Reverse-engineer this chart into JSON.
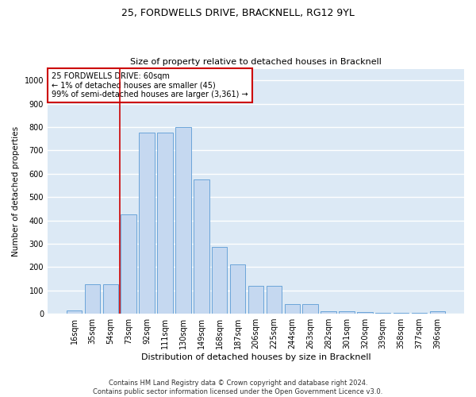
{
  "title": "25, FORDWELLS DRIVE, BRACKNELL, RG12 9YL",
  "subtitle": "Size of property relative to detached houses in Bracknell",
  "xlabel": "Distribution of detached houses by size in Bracknell",
  "ylabel": "Number of detached properties",
  "categories": [
    "16sqm",
    "35sqm",
    "54sqm",
    "73sqm",
    "92sqm",
    "111sqm",
    "130sqm",
    "149sqm",
    "168sqm",
    "187sqm",
    "206sqm",
    "225sqm",
    "244sqm",
    "263sqm",
    "282sqm",
    "301sqm",
    "320sqm",
    "339sqm",
    "358sqm",
    "377sqm",
    "396sqm"
  ],
  "values": [
    15,
    125,
    125,
    425,
    775,
    775,
    800,
    575,
    285,
    210,
    120,
    120,
    40,
    40,
    10,
    10,
    8,
    5,
    5,
    5,
    10
  ],
  "bar_color": "#c5d8f0",
  "bar_edge_color": "#5b9bd5",
  "background_color": "#dce9f5",
  "grid_color": "#ffffff",
  "red_line_x": 2.5,
  "annotation_text": "25 FORDWELLS DRIVE: 60sqm\n← 1% of detached houses are smaller (45)\n99% of semi-detached houses are larger (3,361) →",
  "annotation_box_color": "#ffffff",
  "annotation_box_edge": "#cc0000",
  "ylim": [
    0,
    1050
  ],
  "yticks": [
    0,
    100,
    200,
    300,
    400,
    500,
    600,
    700,
    800,
    900,
    1000
  ],
  "footer_line1": "Contains HM Land Registry data © Crown copyright and database right 2024.",
  "footer_line2": "Contains public sector information licensed under the Open Government Licence v3.0.",
  "title_fontsize": 9,
  "subtitle_fontsize": 8,
  "ylabel_fontsize": 7.5,
  "xlabel_fontsize": 8,
  "tick_fontsize": 7,
  "annotation_fontsize": 7,
  "footer_fontsize": 6
}
